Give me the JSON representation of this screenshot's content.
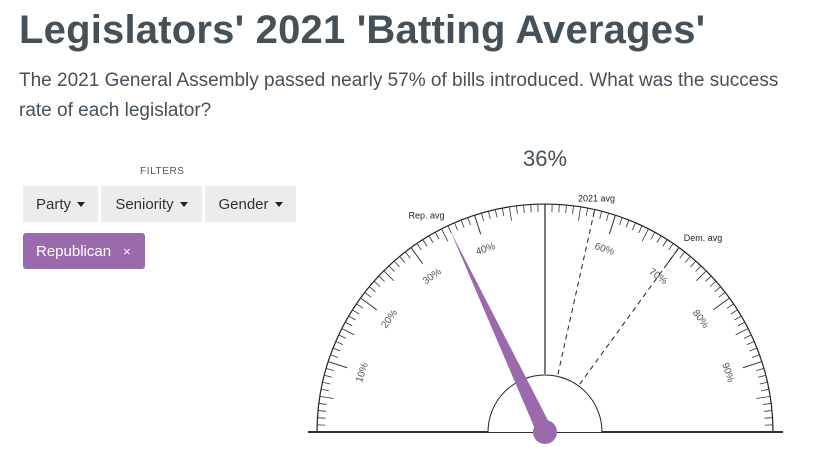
{
  "header": {
    "title": "Legislators' 2021 'Batting Averages'",
    "subtitle": "The 2021 General Assembly passed nearly 57% of bills introduced. What was the success rate of each legislator?"
  },
  "filters": {
    "label": "FILTERS",
    "buttons": [
      {
        "label": "Party"
      },
      {
        "label": "Seniority"
      },
      {
        "label": "Gender"
      }
    ],
    "active": [
      {
        "label": "Republican",
        "remove_icon": "×"
      }
    ]
  },
  "colors": {
    "accent": "#9b6aad",
    "text": "#455059"
  },
  "chart_data": {
    "type": "gauge",
    "value": 36,
    "value_label": "36%",
    "range": [
      0,
      100
    ],
    "tick_labels": [
      "10%",
      "20%",
      "30%",
      "40%",
      "60%",
      "70%",
      "80%",
      "90%"
    ],
    "tick_values": [
      10,
      20,
      30,
      40,
      60,
      70,
      80,
      90
    ],
    "markers": [
      {
        "label": "Rep. avg",
        "value": 36
      },
      {
        "label": "2021 avg",
        "value": 57
      },
      {
        "label": "Dem. avg",
        "value": 70
      }
    ],
    "reference_line": 50,
    "needle_color": "#9b6aad"
  }
}
